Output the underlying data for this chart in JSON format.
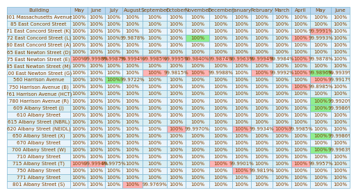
{
  "columns": [
    "Building",
    "May",
    "June",
    "July",
    "August",
    "September",
    "October",
    "November",
    "December",
    "January",
    "February",
    "March",
    "April",
    "May",
    "June"
  ],
  "rows": [
    [
      "801 Massachusetts Avenue",
      "100%",
      "100%",
      "100%",
      "100%",
      "100%",
      "100%",
      "100%",
      "100%",
      "100%",
      "100%",
      "100%",
      "100%",
      "100%",
      "100%"
    ],
    [
      "85 East Concord Street",
      "100%",
      "100%",
      "100%",
      "100%",
      "100%",
      "100%",
      "100%",
      "100%",
      "100%",
      "100%",
      "100%",
      "100%",
      "100%",
      "100%"
    ],
    [
      "71 East Concord Street (K)",
      "100%",
      "100%",
      "100%",
      "100%",
      "100%",
      "100%",
      "100%",
      "100%",
      "100%",
      "100%",
      "100%",
      "100%",
      "99.9991%",
      "100%"
    ],
    [
      "72 East Concord Street (L)",
      "100%",
      "100%",
      "100%",
      "99.9878%",
      "100%",
      "100%",
      "100%",
      "100%",
      "100%",
      "100%",
      "100%",
      "100%",
      "99.9993%",
      "100%"
    ],
    [
      "80 East Concord Street (A)",
      "100%",
      "100%",
      "100%",
      "100%",
      "100%",
      "100%",
      "100%",
      "100%",
      "100%",
      "100%",
      "100%",
      "100%",
      "100%",
      "100%"
    ],
    [
      "65 East Newton Street (D)",
      "100%",
      "100%",
      "100%",
      "100%",
      "100%",
      "100%",
      "100%",
      "100%",
      "100%",
      "100%",
      "100%",
      "100%",
      "100%",
      "100%"
    ],
    [
      "75 East Newton Street (E)",
      "100%",
      "99.9998%",
      "99.9987%",
      "99.9994%",
      "99.9985%",
      "99.9995%",
      "99.9840%",
      "99.9874%",
      "99.9963%",
      "99.9994%",
      "99.9984%",
      "100%",
      "99.9878%",
      "100%"
    ],
    [
      "85 East Newton Street (M)",
      "100%",
      "100%",
      "100%",
      "100%",
      "100%",
      "100%",
      "100%",
      "100%",
      "100%",
      "100%",
      "100%",
      "100%",
      "100%",
      "100%"
    ],
    [
      "100 East Newton Street (G)",
      "100%",
      "100%",
      "100%",
      "100%",
      "100%",
      "99.9815%",
      "100%",
      "99.9988%",
      "100%",
      "100%",
      "99.9992%",
      "100%",
      "99.9896%",
      "99.9939%"
    ],
    [
      "560 Harrison Avenue",
      "100%",
      "100%",
      "100%",
      "99.9722%",
      "100%",
      "100%",
      "100%",
      "100%",
      "100%",
      "100%",
      "100%",
      "100%",
      "100%",
      "99.9917%"
    ],
    [
      "750 Harrison Avenue (B)",
      "100%",
      "100%",
      "100%",
      "100%",
      "100%",
      "100%",
      "100%",
      "100%",
      "100%",
      "100%",
      "100%",
      "100%",
      "99.8985%",
      "100%"
    ],
    [
      "761 Harrison Avenue (HCT)",
      "100%",
      "100%",
      "100%",
      "100%",
      "100%",
      "100%",
      "100%",
      "100%",
      "100%",
      "100%",
      "100%",
      "100%",
      "100%",
      "100%"
    ],
    [
      "780 Harrison Avenue (R)",
      "100%",
      "100%",
      "100%",
      "100%",
      "100%",
      "100%",
      "100%",
      "100%",
      "100%",
      "100%",
      "100%",
      "100%",
      "100%",
      "99.9920%"
    ],
    [
      "609 Albany Street (J)",
      "100%",
      "100%",
      "100%",
      "100%",
      "100%",
      "100%",
      "100%",
      "100%",
      "100%",
      "100%",
      "100%",
      "100%",
      "100%",
      "99.9986%"
    ],
    [
      "610 Albany Street",
      "100%",
      "100%",
      "100%",
      "100%",
      "100%",
      "100%",
      "100%",
      "100%",
      "100%",
      "100%",
      "100%",
      "100%",
      "100%",
      "100%"
    ],
    [
      "615 Albany Street (NBRL)",
      "100%",
      "100%",
      "100%",
      "100%",
      "100%",
      "100%",
      "100%",
      "100%",
      "100%",
      "100%",
      "100%",
      "100%",
      "100%",
      "100%"
    ],
    [
      "620 Albany Street (NEIDL)",
      "100%",
      "100%",
      "100%",
      "100%",
      "100%",
      "100%",
      "99.9970%",
      "100%",
      "100%",
      "99.9934%",
      "100%",
      "99.9985%",
      "100%",
      "100%"
    ],
    [
      "650 Albany Street (X)",
      "100%",
      "100%",
      "100%",
      "100%",
      "100%",
      "100%",
      "100%",
      "100%",
      "100%",
      "100%",
      "100%",
      "100%",
      "100%",
      "99.9986%"
    ],
    [
      "670 Albany Street",
      "100%",
      "100%",
      "100%",
      "100%",
      "100%",
      "100%",
      "100%",
      "100%",
      "100%",
      "100%",
      "100%",
      "100%",
      "100%",
      "100%"
    ],
    [
      "700 Albany Street (W)",
      "100%",
      "100%",
      "100%",
      "100%",
      "100%",
      "100%",
      "100%",
      "100%",
      "100%",
      "100%",
      "100%",
      "100%",
      "100%",
      "99.9963%"
    ],
    [
      "710 Albany Street",
      "100%",
      "100%",
      "100%",
      "100%",
      "100%",
      "100%",
      "100%",
      "100%",
      "100%",
      "100%",
      "100%",
      "100%",
      "100%",
      "100%"
    ],
    [
      "715 Albany Street (T)",
      "100%",
      "99.9994%",
      "99.9975%",
      "100%",
      "100%",
      "100%",
      "100%",
      "100%",
      "99.9901%",
      "100%",
      "100%",
      "100%",
      "99.9957%",
      "100%"
    ],
    [
      "750 Albany Street",
      "100%",
      "100%",
      "100%",
      "100%",
      "100%",
      "100%",
      "100%",
      "100%",
      "100%",
      "99.9819%",
      "100%",
      "100%",
      "100%",
      "100%"
    ],
    [
      "771 Albany Street",
      "100%",
      "100%",
      "100%",
      "100%",
      "100%",
      "100%",
      "100%",
      "100%",
      "100%",
      "100%",
      "100%",
      "100%",
      "100%",
      "100%"
    ],
    [
      "801 Albany Street (S)",
      "100%",
      "100%",
      "100%",
      "100%",
      "99.9769%",
      "100%",
      "100%",
      "100%",
      "100%",
      "100%",
      "100%",
      "100%",
      "100%",
      "100%"
    ]
  ],
  "cell_colors": {
    "2,13": "#ffb3b3",
    "3,7": "#90ee90",
    "3,12": "#ffb3b3",
    "6,1": "#ffb3b3",
    "6,2": "#ffb3b3",
    "6,3": "#ffb3b3",
    "6,4": "#ffb3b3",
    "6,5": "#ffb3b3",
    "6,6": "#ffb3b3",
    "6,7": "#ffb3b3",
    "6,8": "#ffb3b3",
    "6,9": "#ffb3b3",
    "6,10": "#ffb3b3",
    "6,12": "#ffb3b3",
    "8,5": "#ffb3b3",
    "8,7": "#ffb3b3",
    "8,10": "#ffb3b3",
    "8,12": "#ffb3b3",
    "8,13": "#90ee90",
    "9,3": "#90ee90",
    "9,13": "#ffb3b3",
    "10,12": "#ffb3b3",
    "12,13": "#90ee90",
    "13,13": "#90ee90",
    "16,6": "#ffb3b3",
    "16,9": "#ffb3b3",
    "16,11": "#ffb3b3",
    "17,13": "#90ee90",
    "19,13": "#90ee90",
    "21,1": "#ffb3b3",
    "21,2": "#ffb3b3",
    "21,8": "#ffb3b3",
    "21,12": "#ffb3b3",
    "22,9": "#ffb3b3",
    "24,4": "#ffb3b3"
  },
  "header_bg": "#bdd7ee",
  "header_text": "#7b3f00",
  "row_bg_even": "#daeef3",
  "row_bg_odd": "#eaf4fb",
  "cell_text": "#7b3f00",
  "border_color": "#7eb8d4",
  "fig_bg": "#ffffff",
  "col_weights": [
    3.0,
    0.82,
    0.82,
    0.82,
    0.95,
    1.15,
    0.9,
    1.1,
    1.1,
    0.9,
    1.0,
    0.9,
    0.88,
    1.0,
    0.88
  ]
}
